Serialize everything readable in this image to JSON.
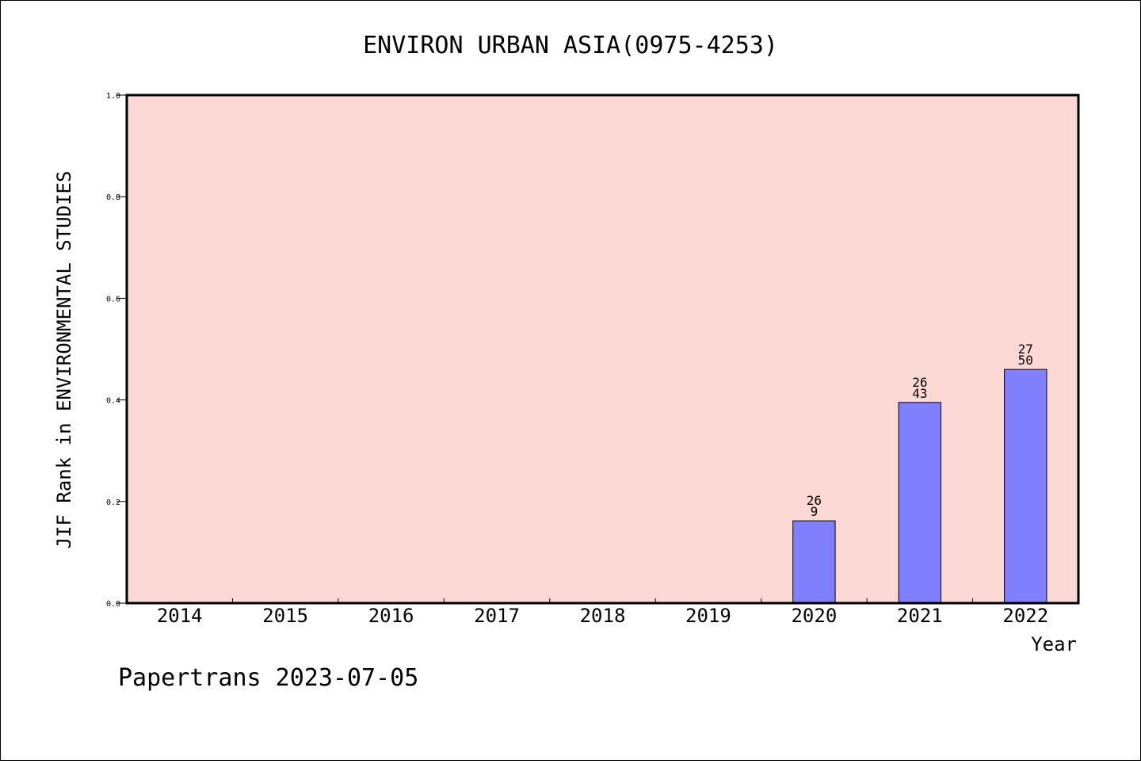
{
  "chart_data": {
    "type": "bar",
    "title": "ENVIRON URBAN ASIA(0975-4253)",
    "xlabel": "Year",
    "ylabel": "JIF Rank in ENVIRONMENTAL STUDIES",
    "categories": [
      "2014",
      "2015",
      "2016",
      "2017",
      "2018",
      "2019",
      "2020",
      "2021",
      "2022"
    ],
    "values": [
      null,
      null,
      null,
      null,
      null,
      null,
      0.162,
      0.395,
      0.46
    ],
    "bar_labels": [
      null,
      null,
      null,
      null,
      null,
      null,
      {
        "top": "26",
        "bottom": "9"
      },
      {
        "top": "26",
        "bottom": "43"
      },
      {
        "top": "27",
        "bottom": "50"
      }
    ],
    "ylim": [
      0,
      1.0
    ],
    "yticks": [
      "0.0",
      "0.2",
      "0.4",
      "0.6",
      "0.8",
      "1.0"
    ],
    "grid": false,
    "colors": {
      "plot_background": "#fdd9d5",
      "bar_fill": "#8080ff",
      "bar_stroke": "#000000"
    }
  },
  "footer": {
    "text": "Papertrans 2023-07-05"
  }
}
